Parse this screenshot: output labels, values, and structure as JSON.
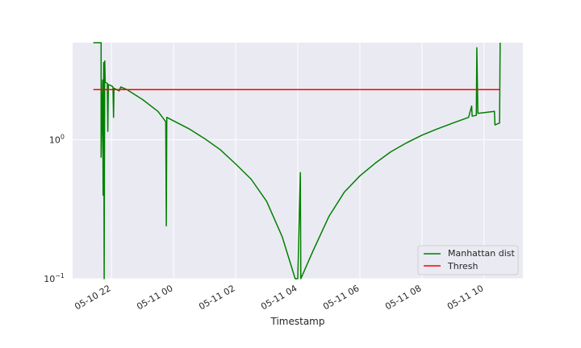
{
  "chart_data": {
    "type": "line",
    "xlabel": "Timestamp",
    "ylabel": "",
    "y_scale": "log",
    "ylim": [
      0.1,
      5
    ],
    "xlim": [
      "2020-05-10 20:45",
      "2020-05-11 11:15"
    ],
    "grid": true,
    "legend_position": "lower-right",
    "x_ticks": [
      {
        "t": "2020-05-10 22:00",
        "label": "05-10 22"
      },
      {
        "t": "2020-05-11 00:00",
        "label": "05-11 00"
      },
      {
        "t": "2020-05-11 02:00",
        "label": "05-11 02"
      },
      {
        "t": "2020-05-11 04:00",
        "label": "05-11 04"
      },
      {
        "t": "2020-05-11 06:00",
        "label": "05-11 06"
      },
      {
        "t": "2020-05-11 08:00",
        "label": "05-11 08"
      },
      {
        "t": "2020-05-11 10:00",
        "label": "05-11 10"
      }
    ],
    "y_ticks": [
      {
        "value": 1,
        "label": "10^0"
      },
      {
        "value": 0.1,
        "label": "10^-1"
      }
    ],
    "series": [
      {
        "name": "Manhattan dist",
        "color": "#008000",
        "points": [
          [
            "2020-05-10 21:25",
            5.0
          ],
          [
            "2020-05-10 21:40",
            5.0
          ],
          [
            "2020-05-10 21:40",
            0.75
          ],
          [
            "2020-05-10 21:43",
            2.7
          ],
          [
            "2020-05-10 21:44",
            0.4
          ],
          [
            "2020-05-10 21:45",
            3.6
          ],
          [
            "2020-05-10 21:46",
            0.1
          ],
          [
            "2020-05-10 21:47",
            3.7
          ],
          [
            "2020-05-10 21:48",
            2.6
          ],
          [
            "2020-05-10 21:52",
            2.55
          ],
          [
            "2020-05-10 21:53",
            1.15
          ],
          [
            "2020-05-10 21:54",
            2.5
          ],
          [
            "2020-05-10 22:00",
            2.45
          ],
          [
            "2020-05-10 22:03",
            2.4
          ],
          [
            "2020-05-10 22:04",
            1.45
          ],
          [
            "2020-05-10 22:05",
            2.35
          ],
          [
            "2020-05-10 22:15",
            2.25
          ],
          [
            "2020-05-10 22:18",
            2.4
          ],
          [
            "2020-05-10 22:30",
            2.3
          ],
          [
            "2020-05-10 23:00",
            1.95
          ],
          [
            "2020-05-10 23:30",
            1.6
          ],
          [
            "2020-05-10 23:45",
            1.35
          ],
          [
            "2020-05-10 23:46",
            0.24
          ],
          [
            "2020-05-10 23:47",
            1.45
          ],
          [
            "2020-05-11 00:30",
            1.2
          ],
          [
            "2020-05-11 01:00",
            1.02
          ],
          [
            "2020-05-11 01:30",
            0.85
          ],
          [
            "2020-05-11 02:00",
            0.67
          ],
          [
            "2020-05-11 02:30",
            0.52
          ],
          [
            "2020-05-11 03:00",
            0.36
          ],
          [
            "2020-05-11 03:30",
            0.2
          ],
          [
            "2020-05-11 03:55",
            0.1
          ],
          [
            "2020-05-11 04:00",
            0.1
          ],
          [
            "2020-05-11 04:05",
            0.58
          ],
          [
            "2020-05-11 04:06",
            0.1
          ],
          [
            "2020-05-11 04:30",
            0.16
          ],
          [
            "2020-05-11 05:00",
            0.28
          ],
          [
            "2020-05-11 05:30",
            0.42
          ],
          [
            "2020-05-11 06:00",
            0.55
          ],
          [
            "2020-05-11 06:30",
            0.68
          ],
          [
            "2020-05-11 07:00",
            0.82
          ],
          [
            "2020-05-11 07:30",
            0.95
          ],
          [
            "2020-05-11 08:00",
            1.08
          ],
          [
            "2020-05-11 08:30",
            1.2
          ],
          [
            "2020-05-11 09:00",
            1.32
          ],
          [
            "2020-05-11 09:30",
            1.45
          ],
          [
            "2020-05-11 09:36",
            1.75
          ],
          [
            "2020-05-11 09:37",
            1.48
          ],
          [
            "2020-05-11 09:45",
            1.5
          ],
          [
            "2020-05-11 09:46",
            4.6
          ],
          [
            "2020-05-11 09:48",
            1.55
          ],
          [
            "2020-05-11 10:20",
            1.6
          ],
          [
            "2020-05-11 10:21",
            1.28
          ],
          [
            "2020-05-11 10:30",
            1.32
          ],
          [
            "2020-05-11 10:31",
            5.0
          ]
        ]
      },
      {
        "name": "Thresh",
        "color": "#ff0000",
        "points": [
          [
            "2020-05-10 21:25",
            2.3
          ],
          [
            "2020-05-11 10:31",
            2.3
          ]
        ]
      }
    ]
  }
}
